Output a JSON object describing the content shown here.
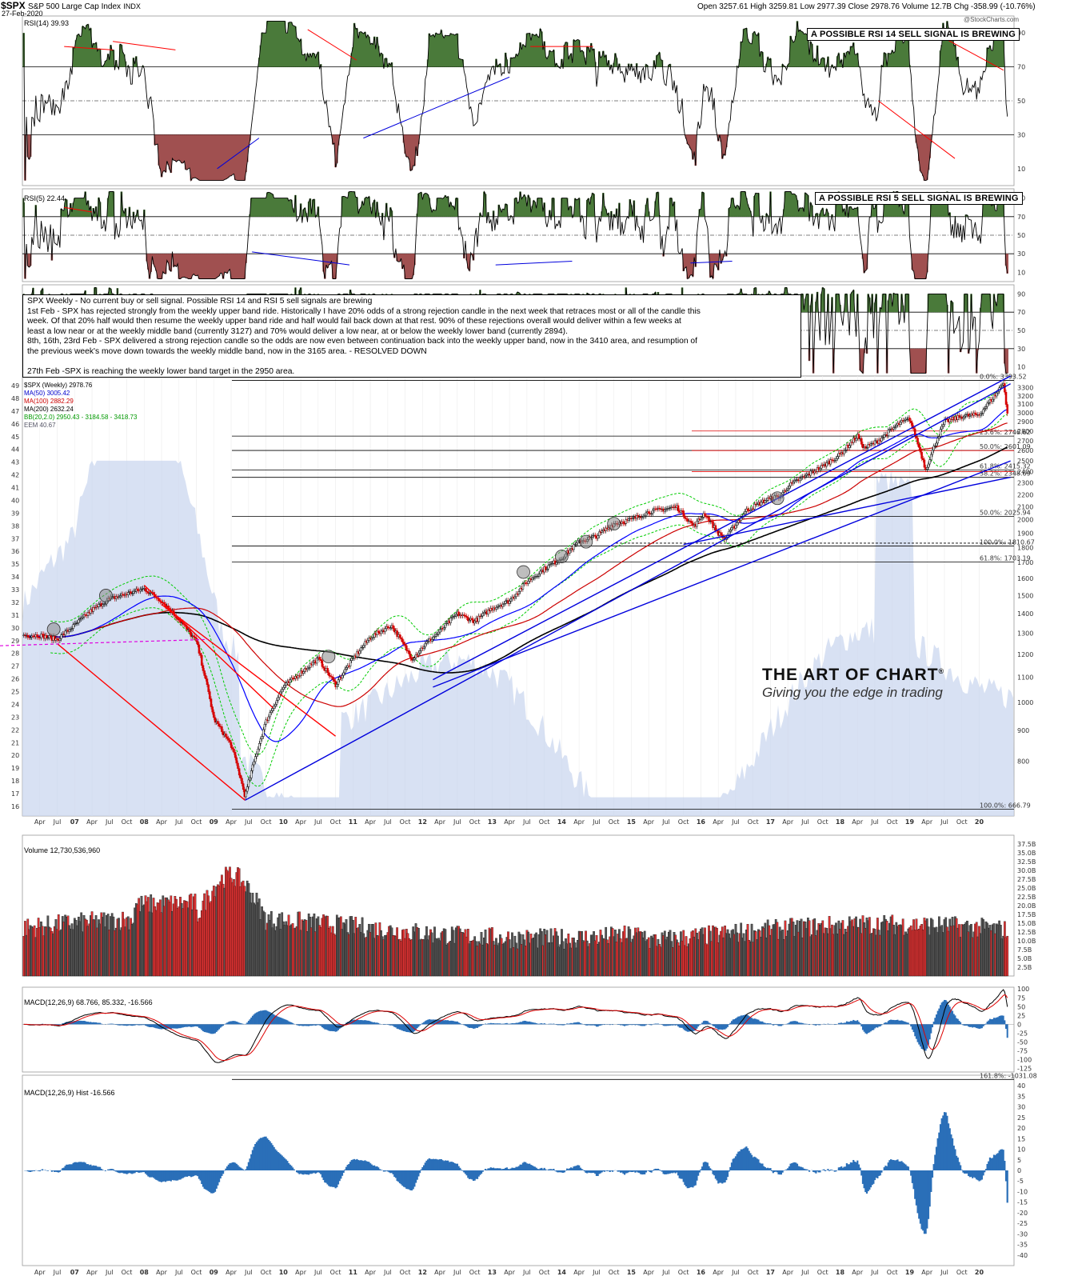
{
  "header": {
    "symbol": "$SPX",
    "name": "S&P 500 Large Cap Index",
    "exchange": "INDX",
    "date": "27-Feb-2020",
    "ohlc": "Open 3257.61  High 3259.81  Low 2977.39  Close 2978.76  Volume 12.7B  Chg -358.99 (-10.76%)",
    "watermark": "@StockCharts.com"
  },
  "panels": {
    "rsi14_label": "RSI(14) 39.93",
    "rsi14_callout": "A POSSIBLE RSI 14 SELL SIGNAL IS BREWING",
    "rsi5_label": "RSI(5) 22.44",
    "rsi5_callout": "A POSSIBLE RSI 5 SELL SIGNAL IS BREWING",
    "price_label": "$SPX (Weekly) 2978.76",
    "ma50_label": "MA(50) 3005.42",
    "ma100_label": "MA(100) 2882.29",
    "ma200_label": "MA(200) 2632.24",
    "bb_label": "BB(20,2.0) 2950.43 - 3184.58 - 3418.73",
    "eem_label": "EEM 40.67",
    "volume_label": "Volume 12,730,536,960",
    "macd_label": "MACD(12,26,9) 68.766, 85.332, -16.566",
    "hist_label": "MACD(12,26,9) Hist -16.566"
  },
  "note": {
    "lines": [
      "SPX Weekly - No current buy or sell signal. Possible RSI 14 and RSI 5 sell signals are brewing",
      "1st Feb - SPX has rejected strongly from the weekly upper band ride. Historically I have 20% odds of a strong rejection candle in the next week that retraces most or all of the candle this",
      "week. Of that 20% half would then resume the weekly upper band ride and half would fail back down at that rest. 90% of these rejections overall would deliver within a few weeks at",
      "least a low near or at the weekly middle band (currently 3127) and 70% would deliver a low near, at or below the weekly lower band (currently 2894).",
      "8th, 16th, 23rd Feb - SPX delivered a strong rejection candle so the odds are now even between continuation back into the weekly upper band, now in the 3410 area, and resumption of",
      "the previous week's move down towards the weekly middle band, now in the 3165 area. - RESOLVED DOWN",
      "",
      "27th Feb -SPX is reaching the weekly lower band target in the 2950 area."
    ]
  },
  "logo": {
    "line1": "THE ART OF CHART",
    "reg": "®",
    "line2": "Giving you the edge in trading"
  },
  "colors": {
    "up": "#ff0000",
    "blue": "#0000dd",
    "ma50": "#0000ff",
    "ma100": "#cc0000",
    "ma200": "#000000",
    "bb": "#00cc00",
    "eem_fill": "#c8d4ee",
    "green_fill": "#4a7a3a",
    "red_fill": "#a05050",
    "hist": "#2a6fb8"
  },
  "chart_data": {
    "type": "line",
    "title": "S&P 500 Large Cap Index (Weekly)",
    "x_ticks": [
      "Apr",
      "Jul",
      "07",
      "Apr",
      "Jul",
      "Oct",
      "08",
      "Apr",
      "Jul",
      "Oct",
      "09",
      "Apr",
      "Jul",
      "Oct",
      "10",
      "Apr",
      "Jul",
      "Oct",
      "11",
      "Apr",
      "Jul",
      "Oct",
      "12",
      "Apr",
      "Jul",
      "Oct",
      "13",
      "Apr",
      "Jul",
      "Oct",
      "14",
      "Apr",
      "Jul",
      "Oct",
      "15",
      "Apr",
      "Jul",
      "Oct",
      "16",
      "Apr",
      "Jul",
      "Oct",
      "17",
      "Apr",
      "Jul",
      "Oct",
      "18",
      "Apr",
      "Jul",
      "Oct",
      "19",
      "Apr",
      "Jul",
      "Oct",
      "20"
    ],
    "price": {
      "ylim": [
        650,
        3450
      ],
      "y_ticks": [
        800,
        900,
        1000,
        1100,
        1200,
        1300,
        1400,
        1500,
        1600,
        1700,
        1800,
        1900,
        2000,
        2100,
        2200,
        2300,
        2400,
        2500,
        2600,
        2700,
        2800,
        2900,
        3000,
        3100,
        3200,
        3300
      ],
      "left_ticks": [
        "16",
        "17",
        "18",
        "19",
        "20",
        "21",
        "22",
        "23",
        "24",
        "25",
        "26",
        "27",
        "28",
        "29",
        "30",
        "31",
        "32",
        "33",
        "34",
        "35",
        "36",
        "37",
        "38",
        "39",
        "40",
        "41",
        "42",
        "43",
        "44",
        "45",
        "46",
        "47",
        "48",
        "49"
      ],
      "series": {
        "x": [
          2006.25,
          2006.5,
          2006.75,
          2007,
          2007.25,
          2007.5,
          2007.75,
          2008,
          2008.25,
          2008.5,
          2008.75,
          2009,
          2009.2,
          2009.5,
          2009.75,
          2010,
          2010.25,
          2010.5,
          2010.75,
          2011,
          2011.3,
          2011.6,
          2011.8,
          2012,
          2012.25,
          2012.5,
          2012.75,
          2013,
          2013.25,
          2013.5,
          2013.75,
          2014,
          2014.25,
          2014.5,
          2014.75,
          2015,
          2015.4,
          2015.65,
          2015.8,
          2016,
          2016.1,
          2016.4,
          2016.7,
          2016.9,
          2017,
          2017.25,
          2017.5,
          2017.75,
          2018,
          2018.1,
          2018.3,
          2018.6,
          2018.75,
          2018.98,
          2019.25,
          2019.5,
          2019.75,
          2020,
          2020.1,
          2020.15
        ],
        "y": [
          1290,
          1270,
          1340,
          1420,
          1480,
          1510,
          1540,
          1470,
          1370,
          1260,
          940,
          850,
          700,
          930,
          1060,
          1120,
          1180,
          1070,
          1180,
          1280,
          1340,
          1180,
          1250,
          1310,
          1400,
          1360,
          1430,
          1470,
          1580,
          1660,
          1730,
          1840,
          1880,
          1970,
          2000,
          2060,
          2100,
          1950,
          2050,
          1900,
          1860,
          2070,
          2160,
          2190,
          2270,
          2360,
          2450,
          2560,
          2750,
          2620,
          2700,
          2880,
          2930,
          2420,
          2900,
          2960,
          2980,
          3230,
          3380,
          2980
        ]
      },
      "fib_levels": [
        {
          "label": "0.0%: 3393.52",
          "value": 3393.52
        },
        {
          "label": "23.6%: 2746.62",
          "value": 2746.62
        },
        {
          "label": "50.0%: 2601.09",
          "value": 2601.09
        },
        {
          "label": "61.8%: 2415.32",
          "value": 2415.32
        },
        {
          "label": "38.2%: 2348.69",
          "value": 2348.69
        },
        {
          "label": "50.0%: 2025.94",
          "value": 2025.94
        },
        {
          "label": "100.0%: 1810.67",
          "value": 1810.67
        },
        {
          "label": "61.8%: 1703.19",
          "value": 1703.19
        },
        {
          "label": "100.0%: 666.79",
          "value": 666.79
        }
      ]
    },
    "rsi14": {
      "ylim": [
        0,
        100
      ],
      "y_ticks": [
        10,
        30,
        50,
        70,
        90
      ],
      "last": 39.93
    },
    "rsi5": {
      "ylim": [
        0,
        100
      ],
      "y_ticks": [
        10,
        30,
        50,
        70,
        90
      ],
      "last": 22.44
    },
    "volume": {
      "ylim": [
        0,
        40
      ],
      "unit": "B",
      "y_ticks": [
        "2.5B",
        "5.0B",
        "7.5B",
        "10.0B",
        "12.5B",
        "15.0B",
        "17.5B",
        "20.0B",
        "22.5B",
        "25.0B",
        "27.5B",
        "30.0B",
        "32.5B",
        "35.0B",
        "37.5B"
      ],
      "last": 12.73
    },
    "macd": {
      "ylim": [
        -135,
        105
      ],
      "y_ticks": [
        100,
        75,
        50,
        25,
        0,
        -25,
        -50,
        -75,
        -100,
        -125
      ],
      "macd": 68.766,
      "signal": 85.332,
      "hist": -16.566
    },
    "macd_hist": {
      "ylim": [
        -45,
        45
      ],
      "y_ticks": [
        40,
        35,
        30,
        25,
        20,
        15,
        10,
        5,
        0,
        -5,
        -10,
        -15,
        -20,
        -25,
        -30,
        -35,
        -40
      ],
      "last": -16.566,
      "fib_label": "161.8%: -1031.08"
    }
  }
}
